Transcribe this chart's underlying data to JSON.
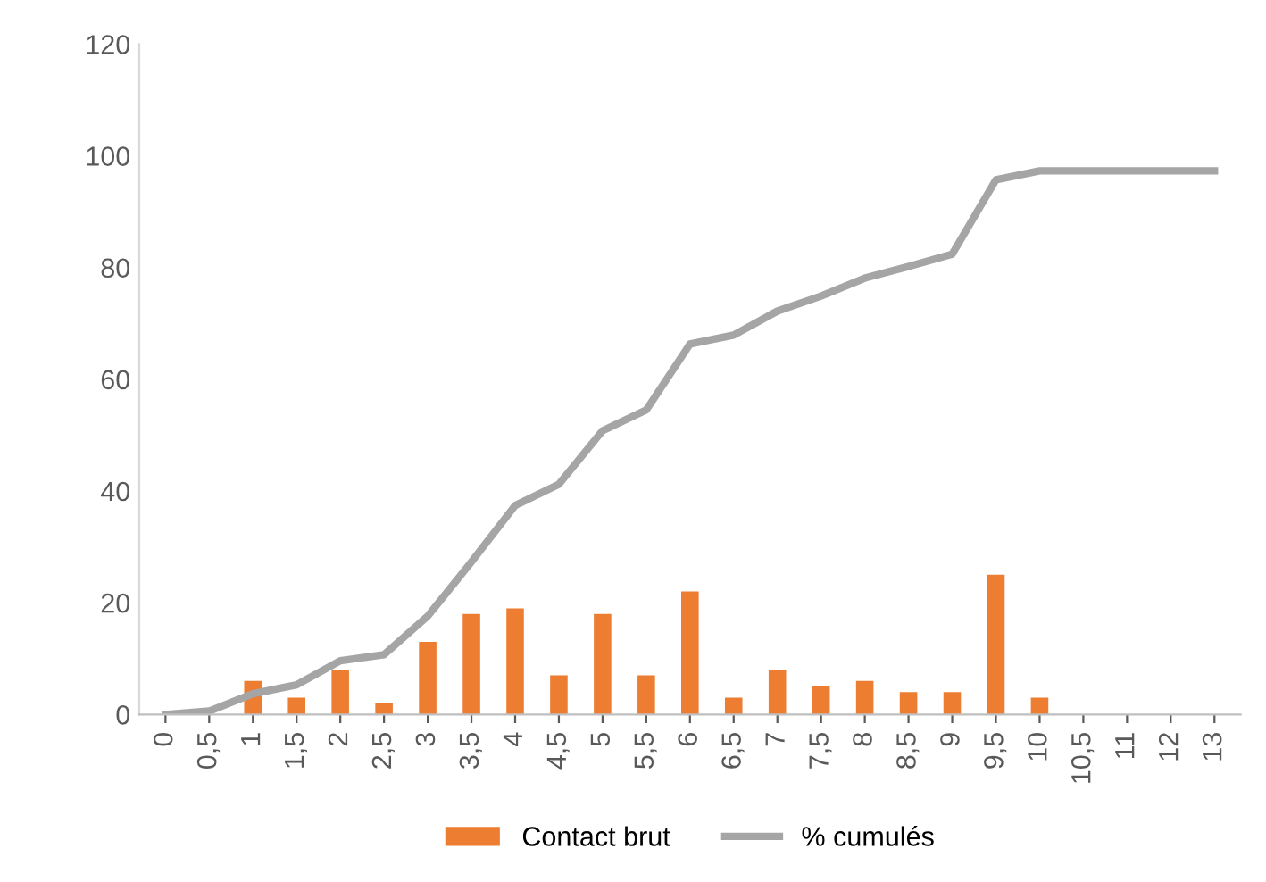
{
  "chart_data": {
    "type": "bar",
    "categories": [
      "0",
      "0,5",
      "1",
      "1,5",
      "2",
      "2,5",
      "3",
      "3,5",
      "4",
      "4,5",
      "5",
      "5,5",
      "6",
      "6,5",
      "7",
      "7,5",
      "8",
      "8,5",
      "9",
      "9,5",
      "10",
      "10,5",
      "11",
      "12",
      "13"
    ],
    "series": [
      {
        "name": "Contact brut",
        "color": "#ed7d31",
        "values": [
          0,
          0,
          6,
          3,
          8,
          2,
          13,
          18,
          19,
          7,
          18,
          7,
          22,
          3,
          8,
          5,
          6,
          4,
          4,
          25,
          3,
          0,
          0,
          0,
          0
        ]
      },
      {
        "name": "% cumulés",
        "type": "line",
        "color": "#a5a5a5",
        "values": [
          0,
          0.6,
          3.7,
          5.3,
          9.6,
          10.7,
          17.6,
          27.3,
          37.4,
          41.2,
          50.8,
          54.5,
          66.3,
          67.9,
          72.2,
          74.9,
          78.1,
          80.2,
          82.4,
          95.7,
          97.3,
          97.3,
          97.3,
          97.3,
          97.3
        ]
      }
    ],
    "ylim": [
      0,
      120
    ],
    "yticks": [
      0,
      20,
      40,
      60,
      80,
      100,
      120
    ],
    "grid": false,
    "legend": "bottom",
    "marker": "none",
    "line_style": "solid"
  }
}
